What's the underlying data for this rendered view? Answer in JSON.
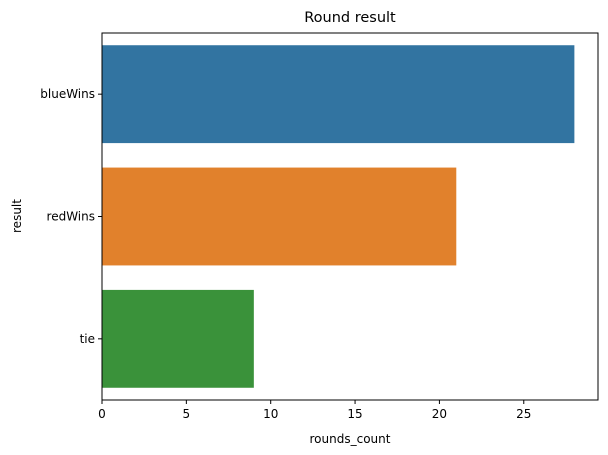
{
  "chart_data": {
    "type": "bar",
    "orientation": "horizontal",
    "title": "Round result",
    "xlabel": "rounds_count",
    "ylabel": "result",
    "categories": [
      "blueWins",
      "redWins",
      "tie"
    ],
    "values": [
      28,
      21,
      9
    ],
    "colors": [
      "#3274a1",
      "#e1812c",
      "#3a923a"
    ],
    "xlim": [
      0,
      29.4
    ],
    "xticks": [
      0,
      5,
      10,
      15,
      20,
      25
    ],
    "grid": false,
    "legend": "none"
  }
}
